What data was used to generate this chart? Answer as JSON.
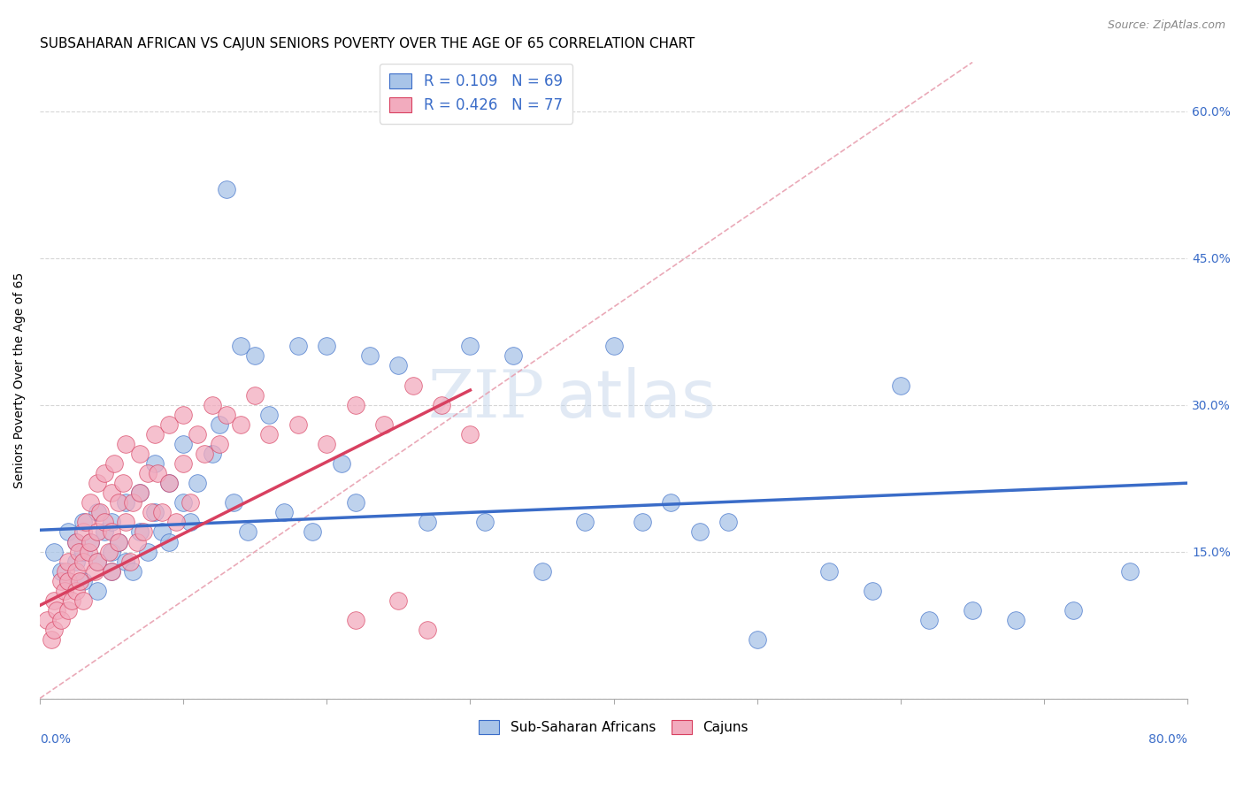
{
  "title": "SUBSAHARAN AFRICAN VS CAJUN SENIORS POVERTY OVER THE AGE OF 65 CORRELATION CHART",
  "source": "Source: ZipAtlas.com",
  "ylabel": "Seniors Poverty Over the Age of 65",
  "legend_entry1": "R = 0.109   N = 69",
  "legend_entry2": "R = 0.426   N = 77",
  "legend_label1": "Sub-Saharan Africans",
  "legend_label2": "Cajuns",
  "blue_color": "#A8C4E8",
  "pink_color": "#F2ABBE",
  "blue_line_color": "#3A6CC8",
  "pink_line_color": "#D84060",
  "diag_line_color": "#E8A0B0",
  "xlim": [
    0.0,
    0.8
  ],
  "ylim": [
    0.0,
    0.65
  ],
  "blue_scatter_x": [
    0.01,
    0.015,
    0.02,
    0.02,
    0.025,
    0.025,
    0.03,
    0.03,
    0.03,
    0.035,
    0.04,
    0.04,
    0.04,
    0.045,
    0.05,
    0.05,
    0.05,
    0.055,
    0.06,
    0.06,
    0.065,
    0.07,
    0.07,
    0.075,
    0.08,
    0.08,
    0.085,
    0.09,
    0.09,
    0.1,
    0.1,
    0.105,
    0.11,
    0.12,
    0.125,
    0.13,
    0.135,
    0.14,
    0.145,
    0.15,
    0.16,
    0.17,
    0.18,
    0.19,
    0.2,
    0.21,
    0.22,
    0.23,
    0.25,
    0.27,
    0.3,
    0.31,
    0.33,
    0.35,
    0.38,
    0.4,
    0.42,
    0.44,
    0.46,
    0.48,
    0.5,
    0.55,
    0.58,
    0.6,
    0.62,
    0.65,
    0.68,
    0.72,
    0.76
  ],
  "blue_scatter_y": [
    0.15,
    0.13,
    0.17,
    0.12,
    0.16,
    0.14,
    0.18,
    0.15,
    0.12,
    0.16,
    0.14,
    0.19,
    0.11,
    0.17,
    0.15,
    0.13,
    0.18,
    0.16,
    0.14,
    0.2,
    0.13,
    0.21,
    0.17,
    0.15,
    0.19,
    0.24,
    0.17,
    0.22,
    0.16,
    0.2,
    0.26,
    0.18,
    0.22,
    0.25,
    0.28,
    0.52,
    0.2,
    0.36,
    0.17,
    0.35,
    0.29,
    0.19,
    0.36,
    0.17,
    0.36,
    0.24,
    0.2,
    0.35,
    0.34,
    0.18,
    0.36,
    0.18,
    0.35,
    0.13,
    0.18,
    0.36,
    0.18,
    0.2,
    0.17,
    0.18,
    0.06,
    0.13,
    0.11,
    0.32,
    0.08,
    0.09,
    0.08,
    0.09,
    0.13
  ],
  "pink_scatter_x": [
    0.005,
    0.008,
    0.01,
    0.01,
    0.012,
    0.015,
    0.015,
    0.017,
    0.018,
    0.02,
    0.02,
    0.02,
    0.022,
    0.025,
    0.025,
    0.025,
    0.027,
    0.028,
    0.03,
    0.03,
    0.03,
    0.032,
    0.034,
    0.035,
    0.035,
    0.038,
    0.04,
    0.04,
    0.04,
    0.042,
    0.045,
    0.045,
    0.048,
    0.05,
    0.05,
    0.05,
    0.052,
    0.055,
    0.055,
    0.058,
    0.06,
    0.06,
    0.063,
    0.065,
    0.068,
    0.07,
    0.07,
    0.072,
    0.075,
    0.078,
    0.08,
    0.082,
    0.085,
    0.09,
    0.09,
    0.095,
    0.1,
    0.1,
    0.105,
    0.11,
    0.115,
    0.12,
    0.125,
    0.13,
    0.14,
    0.15,
    0.16,
    0.18,
    0.2,
    0.22,
    0.24,
    0.26,
    0.28,
    0.3,
    0.22,
    0.25,
    0.27
  ],
  "pink_scatter_y": [
    0.08,
    0.06,
    0.1,
    0.07,
    0.09,
    0.12,
    0.08,
    0.11,
    0.13,
    0.14,
    0.09,
    0.12,
    0.1,
    0.16,
    0.13,
    0.11,
    0.15,
    0.12,
    0.17,
    0.14,
    0.1,
    0.18,
    0.15,
    0.2,
    0.16,
    0.13,
    0.22,
    0.17,
    0.14,
    0.19,
    0.23,
    0.18,
    0.15,
    0.21,
    0.17,
    0.13,
    0.24,
    0.2,
    0.16,
    0.22,
    0.26,
    0.18,
    0.14,
    0.2,
    0.16,
    0.25,
    0.21,
    0.17,
    0.23,
    0.19,
    0.27,
    0.23,
    0.19,
    0.28,
    0.22,
    0.18,
    0.29,
    0.24,
    0.2,
    0.27,
    0.25,
    0.3,
    0.26,
    0.29,
    0.28,
    0.31,
    0.27,
    0.28,
    0.26,
    0.3,
    0.28,
    0.32,
    0.3,
    0.27,
    0.08,
    0.1,
    0.07
  ],
  "blue_line_x": [
    0.0,
    0.8
  ],
  "blue_line_y": [
    0.172,
    0.22
  ],
  "pink_line_x": [
    0.0,
    0.3
  ],
  "pink_line_y": [
    0.095,
    0.315
  ],
  "diag_line_x": [
    0.0,
    0.65
  ],
  "diag_line_y": [
    0.0,
    0.65
  ],
  "title_fontsize": 11,
  "axis_label_fontsize": 10,
  "tick_fontsize": 10
}
